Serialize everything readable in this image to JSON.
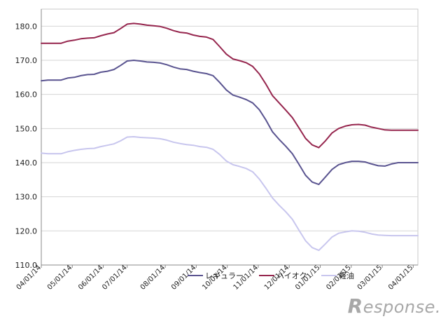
{
  "chart_data": {
    "type": "line",
    "title": "",
    "xlabel": "",
    "ylabel": "",
    "ylim": [
      110,
      185
    ],
    "yticks": [
      "110.0",
      "120.0",
      "130.0",
      "140.0",
      "150.0",
      "160.0",
      "170.0",
      "180.0"
    ],
    "x": [
      "04/01/14",
      "04/08/14",
      "04/15/14",
      "04/22/14",
      "04/29/14",
      "05/06/14",
      "05/13/14",
      "05/20/14",
      "05/27/14",
      "06/03/14",
      "06/10/14",
      "06/17/14",
      "06/24/14",
      "07/01/14",
      "07/08/14",
      "07/15/14",
      "07/22/14",
      "07/29/14",
      "08/05/14",
      "08/12/14",
      "08/19/14",
      "08/26/14",
      "09/02/14",
      "09/09/14",
      "09/16/14",
      "09/23/14",
      "09/30/14",
      "10/07/14",
      "10/14/14",
      "10/21/14",
      "10/28/14",
      "11/04/14",
      "11/11/14",
      "11/18/14",
      "11/25/14",
      "12/02/14",
      "12/09/14",
      "12/16/14",
      "12/23/14",
      "12/30/14",
      "01/06/15",
      "01/13/15",
      "01/20/15",
      "01/27/15",
      "02/03/15",
      "02/10/15",
      "02/17/15",
      "02/24/15",
      "03/03/15",
      "03/10/15",
      "03/17/15",
      "03/24/15",
      "03/31/15",
      "04/07/15",
      "04/14/15",
      "04/21/15",
      "04/28/15",
      "05/05/15"
    ],
    "xtick_labels": [
      "04/01/14",
      "05/01/14",
      "06/01/14",
      "07/01/14",
      "08/01/14",
      "09/01/14",
      "10/01/14",
      "11/01/14",
      "12/01/14",
      "01/01/15",
      "02/01/15",
      "03/01/15",
      "04/01/15"
    ],
    "series": [
      {
        "name": "レギュラー",
        "color": "#5a5490",
        "values": [
          164.0,
          164.2,
          164.2,
          164.2,
          164.8,
          165.0,
          165.5,
          165.8,
          165.9,
          166.5,
          166.8,
          167.3,
          168.5,
          169.8,
          170.0,
          169.8,
          169.5,
          169.4,
          169.2,
          168.7,
          168.0,
          167.5,
          167.3,
          166.8,
          166.4,
          166.1,
          165.5,
          163.5,
          161.3,
          159.8,
          159.2,
          158.5,
          157.5,
          155.5,
          152.5,
          149.0,
          146.8,
          144.8,
          142.6,
          139.5,
          136.3,
          134.3,
          133.6,
          135.8,
          138.0,
          139.4,
          140.0,
          140.4,
          140.4,
          140.2,
          139.6,
          139.1,
          139.0,
          139.6,
          140.0,
          140.0,
          140.0,
          140.0
        ]
      },
      {
        "name": "ハイオク",
        "color": "#96264e",
        "values": [
          175.0,
          175.0,
          175.0,
          175.0,
          175.6,
          175.9,
          176.3,
          176.5,
          176.6,
          177.2,
          177.7,
          178.1,
          179.3,
          180.6,
          180.8,
          180.6,
          180.3,
          180.1,
          179.9,
          179.4,
          178.7,
          178.2,
          178.0,
          177.4,
          177.0,
          176.8,
          176.1,
          174.0,
          171.8,
          170.4,
          169.9,
          169.3,
          168.2,
          166.0,
          163.0,
          159.6,
          157.5,
          155.4,
          153.2,
          150.2,
          147.1,
          145.2,
          144.4,
          146.4,
          148.7,
          150.0,
          150.7,
          151.1,
          151.2,
          151.0,
          150.4,
          150.0,
          149.6,
          149.5,
          149.5,
          149.5,
          149.5,
          149.5
        ]
      },
      {
        "name": "軽油",
        "color": "#c8c6ee",
        "values": [
          142.8,
          142.6,
          142.6,
          142.6,
          143.2,
          143.6,
          143.9,
          144.1,
          144.2,
          144.7,
          145.1,
          145.5,
          146.4,
          147.5,
          147.6,
          147.4,
          147.3,
          147.2,
          147.0,
          146.6,
          146.0,
          145.6,
          145.3,
          145.1,
          144.7,
          144.5,
          143.9,
          142.4,
          140.5,
          139.4,
          138.9,
          138.3,
          137.3,
          135.2,
          132.5,
          129.6,
          127.5,
          125.6,
          123.4,
          120.2,
          117.1,
          115.1,
          114.3,
          116.2,
          118.2,
          119.3,
          119.7,
          120.0,
          119.9,
          119.6,
          119.1,
          118.8,
          118.7,
          118.6,
          118.6,
          118.6,
          118.6,
          118.6
        ]
      }
    ],
    "grid": true,
    "legend_position": "bottom-center"
  },
  "watermark": {
    "text": "esponse.",
    "initial": "R"
  }
}
